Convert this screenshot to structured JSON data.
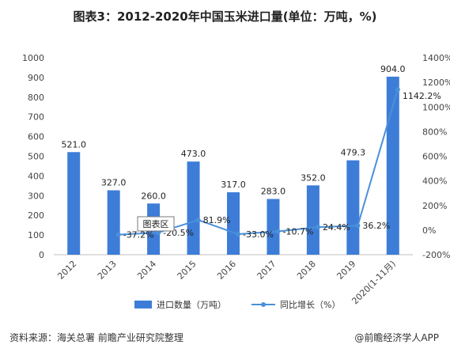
{
  "title": "图表3：2012-2020年中国玉米进口量(单位：万吨，%)",
  "footer": {
    "source": "资料来源：海关总署 前瞻产业研究院整理",
    "brand": "@前瞻经济学人APP"
  },
  "tooltip_label": "图表区",
  "colors": {
    "bar": "#3d7dd8",
    "line": "#4a90d9",
    "marker": "#4a90d9"
  },
  "chart_data": {
    "type": "bar",
    "categories": [
      "2012",
      "2013",
      "2014",
      "2015",
      "2016",
      "2017",
      "2018",
      "2019",
      "2020(1-11月)"
    ],
    "series": [
      {
        "name": "进口数量（万吨）",
        "type": "bar",
        "axis": "left",
        "values": [
          521.0,
          327.0,
          260.0,
          473.0,
          317.0,
          283.0,
          352.0,
          479.3,
          904.0
        ],
        "labels": [
          "521.0",
          "327.0",
          "260.0",
          "473.0",
          "317.0",
          "283.0",
          "352.0",
          "479.3",
          "904.0"
        ]
      },
      {
        "name": "同比增长（%）",
        "type": "line",
        "axis": "right",
        "values": [
          null,
          -37.2,
          -20.5,
          81.9,
          -33.0,
          -10.7,
          24.4,
          36.2,
          1142.2
        ],
        "labels": [
          "",
          "-37.2%",
          "-20.5%",
          "81.9%",
          "-33.0%",
          "-10.7%",
          "24.4%",
          "36.2%",
          "1142.2%"
        ]
      }
    ],
    "yleft": {
      "min": 0,
      "max": 1000,
      "ticks": [
        "0",
        "100",
        "200",
        "300",
        "400",
        "500",
        "600",
        "700",
        "800",
        "900",
        "1000"
      ]
    },
    "yright": {
      "min": -200,
      "max": 1400,
      "ticks": [
        "-200%",
        "0%",
        "200%",
        "400%",
        "600%",
        "800%",
        "1000%",
        "1200%",
        "1400%"
      ]
    },
    "legend_position": "bottom",
    "grid": false
  }
}
